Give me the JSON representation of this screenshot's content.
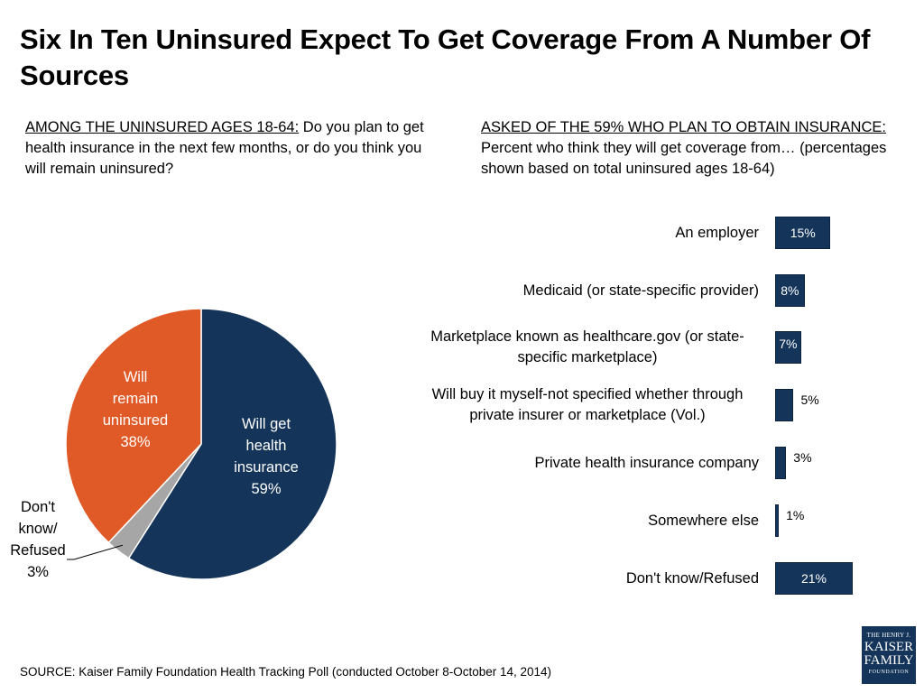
{
  "title": "Six In Ten Uninsured Expect To Get Coverage From A Number Of Sources",
  "left_question": {
    "lead": "AMONG THE UNINSURED AGES 18-64:",
    "text": " Do you plan to get health insurance in the next few months, or do you think you will remain uninsured?"
  },
  "right_question": {
    "lead": "ASKED OF THE 59% WHO PLAN TO OBTAIN INSURANCE:",
    "text": "Percent who think they will get coverage from… (percentages shown based on total uninsured ages 18-64)"
  },
  "source": "SOURCE: Kaiser Family Foundation Health Tracking Poll (conducted October 8-October 14, 2014)",
  "logo": {
    "line1": "THE HENRY J.",
    "line2": "KAISER",
    "line3": "FAMILY",
    "line4": "FOUNDATION"
  },
  "colors": {
    "navy": "#14345a",
    "orange": "#e05a28",
    "gray": "#a6a6a6"
  },
  "chart_data": [
    {
      "type": "pie",
      "slices": [
        {
          "label_lines": [
            "Will get",
            "health",
            "insurance",
            "59%"
          ],
          "value": 59,
          "color": "#14345a"
        },
        {
          "label_lines": [
            "Don't",
            "know/",
            "Refused",
            "3%"
          ],
          "value": 3,
          "color": "#a6a6a6"
        },
        {
          "label_lines": [
            "Will",
            "remain",
            "uninsured",
            "38%"
          ],
          "value": 38,
          "color": "#e05a28"
        }
      ]
    },
    {
      "type": "bar",
      "orientation": "horizontal",
      "categories": [
        "An employer",
        "Medicaid (or state-specific provider)",
        "Marketplace known as healthcare.gov (or state-specific marketplace)",
        "Will buy it myself-not specified whether through private insurer or marketplace (Vol.)",
        "Private health insurance company",
        "Somewhere else",
        "Don't know/Refused"
      ],
      "values": [
        15,
        8,
        7,
        5,
        3,
        1,
        21
      ],
      "value_labels": [
        "15%",
        "8%",
        "7%",
        "5%",
        "3%",
        "1%",
        "21%"
      ],
      "color": "#14345a"
    }
  ]
}
